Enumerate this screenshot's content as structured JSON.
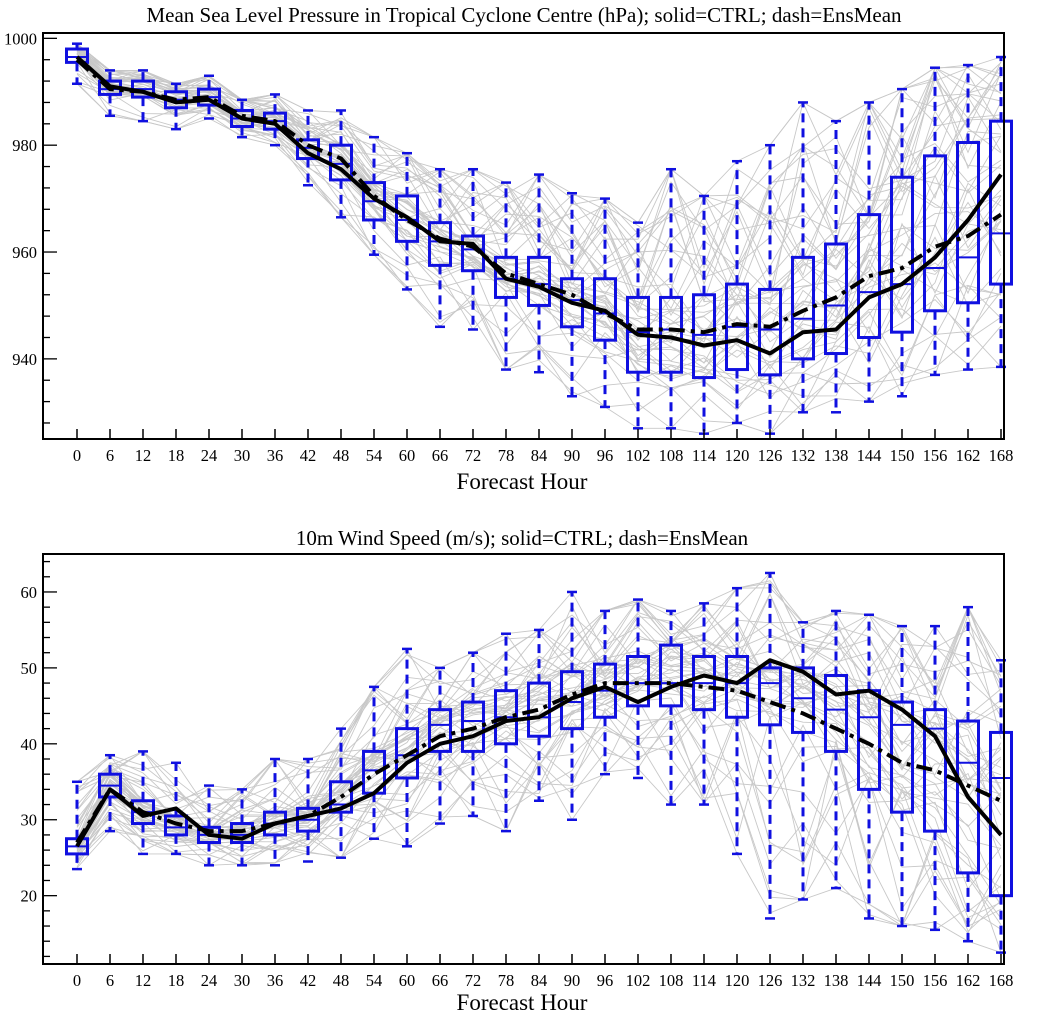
{
  "chart_data": [
    {
      "type": "box",
      "title": "Mean Sea Level Pressure in Tropical Cyclone Centre (hPa); solid=CTRL; dash=EnsMean",
      "xlabel": "Forecast Hour",
      "ylabel": "",
      "categories": [
        "0",
        "6",
        "12",
        "18",
        "24",
        "30",
        "36",
        "42",
        "48",
        "54",
        "60",
        "66",
        "72",
        "78",
        "84",
        "90",
        "96",
        "102",
        "108",
        "114",
        "120",
        "126",
        "132",
        "138",
        "144",
        "150",
        "156",
        "162",
        "168"
      ],
      "ylim": [
        925,
        1001
      ],
      "yticks": [
        "940",
        "960",
        "980",
        "1000"
      ],
      "ytick_values": [
        940,
        960,
        980,
        1000
      ],
      "legend": "none",
      "grid": false,
      "box_color": "#1010e0",
      "line_color": "#000000",
      "spaghetti_color": "#c8c8c8",
      "boxes": {
        "whisker_low": [
          991.5,
          985.5,
          984.5,
          983,
          985,
          981.5,
          980,
          972.5,
          966.5,
          959.5,
          953,
          946,
          945.5,
          938,
          937.5,
          933,
          931,
          927,
          927,
          926,
          928,
          926,
          930,
          930,
          932,
          933,
          937,
          938,
          938.5
        ],
        "q1": [
          995.5,
          989.5,
          989,
          987,
          987.5,
          983.5,
          983,
          977.5,
          973.5,
          966,
          962,
          957.5,
          956.5,
          951.5,
          950,
          946,
          943.5,
          937.5,
          937.5,
          936.5,
          938,
          937,
          940,
          941,
          944,
          945,
          949,
          950.5,
          954
        ],
        "median": [
          996.5,
          990.5,
          990.5,
          988.5,
          989,
          985,
          984.5,
          979.5,
          976.5,
          969.5,
          966,
          962,
          960.5,
          955,
          954,
          951,
          948.5,
          945,
          945.5,
          944.5,
          946,
          945.5,
          947.5,
          950,
          952.5,
          954,
          957,
          959,
          963.5
        ],
        "q3": [
          998,
          992,
          992,
          990,
          990.5,
          986.5,
          986,
          981,
          980,
          973,
          970.5,
          965.5,
          963,
          959,
          959,
          955,
          955,
          951.5,
          951.5,
          952,
          954,
          953,
          959,
          961.5,
          967,
          974,
          978,
          980.5,
          984.5
        ],
        "whisker_high": [
          999,
          994,
          994,
          991.5,
          993,
          988.5,
          989.5,
          986.5,
          986.5,
          981.5,
          978.5,
          975.5,
          975.5,
          973,
          974.5,
          971,
          970,
          965.5,
          975.5,
          970.5,
          977,
          980,
          988,
          984.5,
          988,
          990.5,
          994.5,
          995,
          996.5
        ]
      },
      "series": [
        {
          "name": "CTRL",
          "style": "solid",
          "values": [
            996.5,
            991,
            990,
            988,
            988.5,
            985,
            984,
            978.5,
            975.5,
            970,
            966.5,
            962,
            961.5,
            955,
            953.5,
            950.5,
            949,
            944.5,
            944,
            942.5,
            943.5,
            941,
            945,
            945.5,
            951.5,
            954,
            959,
            966,
            974.5
          ]
        },
        {
          "name": "EnsMean",
          "style": "dash",
          "values": [
            996,
            990.5,
            990,
            988.5,
            989,
            985.5,
            984.5,
            980,
            977.5,
            970.5,
            966,
            962.5,
            961,
            956,
            954,
            952,
            948.5,
            945.5,
            945.5,
            945,
            946.5,
            946,
            949,
            951.5,
            955.5,
            957,
            961,
            963,
            967
          ]
        }
      ]
    },
    {
      "type": "box",
      "title": "10m Wind Speed (m/s); solid=CTRL; dash=EnsMean",
      "xlabel": "Forecast Hour",
      "ylabel": "",
      "categories": [
        "0",
        "6",
        "12",
        "18",
        "24",
        "30",
        "36",
        "42",
        "48",
        "54",
        "60",
        "66",
        "72",
        "78",
        "84",
        "90",
        "96",
        "102",
        "108",
        "114",
        "120",
        "126",
        "132",
        "138",
        "144",
        "150",
        "156",
        "162",
        "168"
      ],
      "ylim": [
        11,
        65
      ],
      "yticks": [
        "20",
        "30",
        "40",
        "50",
        "60"
      ],
      "ytick_values": [
        20,
        30,
        40,
        50,
        60
      ],
      "legend": "none",
      "grid": false,
      "box_color": "#1010e0",
      "line_color": "#000000",
      "spaghetti_color": "#c8c8c8",
      "boxes": {
        "whisker_low": [
          23.5,
          28.5,
          25.5,
          25.5,
          24,
          24,
          24,
          24.5,
          25,
          27.5,
          26.5,
          29.5,
          30.5,
          28.5,
          32.5,
          30,
          36,
          35.5,
          32,
          32,
          25.5,
          17,
          19.5,
          21,
          17,
          16,
          15.5,
          14,
          12.5
        ],
        "q1": [
          25.5,
          33,
          29.5,
          28,
          27,
          27,
          28,
          28.5,
          31,
          33.5,
          35.5,
          39,
          39,
          40,
          41,
          42,
          43.5,
          45,
          45,
          44.5,
          43.5,
          42.5,
          41.5,
          39,
          34,
          31,
          28.5,
          23,
          20
        ],
        "median": [
          26.5,
          34.5,
          31,
          29,
          28,
          28,
          29.5,
          30,
          32,
          36.5,
          38.5,
          42.5,
          43,
          43.5,
          43.5,
          45.5,
          47,
          48,
          48,
          48,
          48,
          48,
          46,
          44.5,
          43.5,
          42.5,
          42,
          37.5,
          35.5
        ],
        "q3": [
          27.5,
          36,
          32.5,
          30.5,
          29,
          29.5,
          31,
          31.5,
          35,
          39,
          42,
          44.5,
          45.5,
          47,
          48,
          49.5,
          50.5,
          51.5,
          53,
          51.5,
          51.5,
          50,
          50,
          49,
          47,
          45.5,
          44.5,
          43,
          41.5
        ],
        "whisker_high": [
          35,
          38.5,
          39,
          37.5,
          34.5,
          34,
          38,
          38,
          42,
          47.5,
          52.5,
          50,
          52,
          54.5,
          55,
          60,
          57.5,
          59,
          57.5,
          58.5,
          60.5,
          62.5,
          56,
          57.5,
          57,
          55.5,
          55.5,
          58,
          51
        ]
      },
      "series": [
        {
          "name": "CTRL",
          "style": "solid",
          "values": [
            26.5,
            34,
            30.5,
            31.5,
            28,
            27.5,
            29.5,
            30.5,
            31.5,
            33.5,
            37.5,
            40,
            41,
            43,
            43.5,
            46,
            47.5,
            45.5,
            47.5,
            49,
            48,
            51,
            49.5,
            46.5,
            47,
            44.5,
            41,
            33,
            28
          ]
        },
        {
          "name": "EnsMean",
          "style": "dash",
          "values": [
            27,
            34,
            31,
            29.5,
            28.5,
            28.5,
            29.5,
            30.5,
            33,
            36,
            38.5,
            41,
            42,
            43.5,
            44.5,
            46.5,
            48,
            48,
            48,
            47.5,
            47,
            45.5,
            44,
            42,
            40,
            37.5,
            36.5,
            34.5,
            32.5
          ]
        }
      ]
    }
  ]
}
